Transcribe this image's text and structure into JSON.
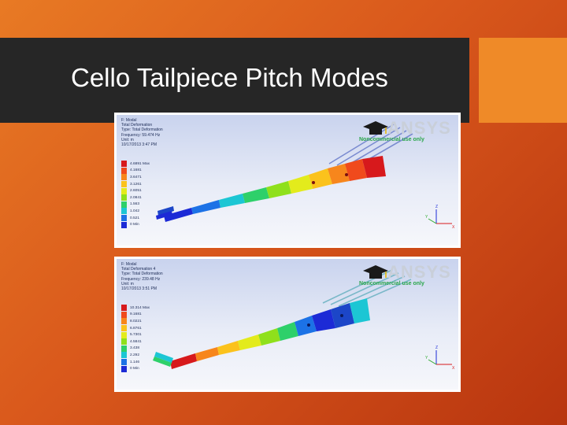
{
  "slide": {
    "title": "Cello Tailpiece Pitch Modes"
  },
  "panels": [
    {
      "info_lines": [
        "F: Modal",
        "Total Deformation",
        "Type: Total Deformation",
        "Frequency: 59.474 Hz",
        "Unit: m",
        "10/17/2013 3:47 PM"
      ],
      "legend": [
        {
          "label": "4.6891 Max",
          "color": "#d7191c"
        },
        {
          "label": "4.1681",
          "color": "#f04a1c"
        },
        {
          "label": "3.6471",
          "color": "#f7861c"
        },
        {
          "label": "3.1261",
          "color": "#fbc21c"
        },
        {
          "label": "2.6051",
          "color": "#e3eb1c"
        },
        {
          "label": "2.0841",
          "color": "#8fe01c"
        },
        {
          "label": "1.563",
          "color": "#2ed06a"
        },
        {
          "label": "1.042",
          "color": "#1cc6d4"
        },
        {
          "label": "0.521",
          "color": "#1c72e6"
        },
        {
          "label": "0 Min",
          "color": "#1c2ad6"
        }
      ],
      "logo_text": "ANSYS",
      "logo_sub": "Noncommercial use only",
      "axes": {
        "x": "X",
        "y": "Y",
        "z": "Z"
      }
    },
    {
      "info_lines": [
        "F: Modal",
        "Total Deformation 4",
        "Type: Total Deformation",
        "Frequency: 239.48 Hz",
        "Unit: m",
        "10/17/2013 3:51 PM"
      ],
      "legend": [
        {
          "label": "10.314 Max",
          "color": "#d7191c"
        },
        {
          "label": "9.1681",
          "color": "#f04a1c"
        },
        {
          "label": "8.0221",
          "color": "#f7861c"
        },
        {
          "label": "6.8761",
          "color": "#fbc21c"
        },
        {
          "label": "5.7301",
          "color": "#e3eb1c"
        },
        {
          "label": "4.5841",
          "color": "#8fe01c"
        },
        {
          "label": "3.438",
          "color": "#2ed06a"
        },
        {
          "label": "2.292",
          "color": "#1cc6d4"
        },
        {
          "label": "1.146",
          "color": "#1c72e6"
        },
        {
          "label": "0 Min",
          "color": "#1c2ad6"
        }
      ],
      "logo_text": "ANSYS",
      "logo_sub": "Noncommercial use only",
      "axes": {
        "x": "X",
        "y": "Y",
        "z": "Z"
      }
    }
  ]
}
